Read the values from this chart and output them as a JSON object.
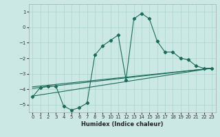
{
  "xlabel": "Humidex (Indice chaleur)",
  "ylabel": "",
  "xlim": [
    -0.5,
    23.5
  ],
  "ylim": [
    -5.5,
    1.5
  ],
  "yticks": [
    1,
    0,
    -1,
    -2,
    -3,
    -4,
    -5
  ],
  "xticks": [
    0,
    1,
    2,
    3,
    4,
    5,
    6,
    7,
    8,
    9,
    10,
    11,
    12,
    13,
    14,
    15,
    16,
    17,
    18,
    19,
    20,
    21,
    22,
    23
  ],
  "bg_color": "#cce8e4",
  "line_color": "#1a6b5a",
  "grid_color": "#b0d8d2",
  "main_series": {
    "x": [
      0,
      1,
      2,
      3,
      4,
      5,
      6,
      7,
      8,
      9,
      10,
      11,
      12,
      13,
      14,
      15,
      16,
      17,
      18,
      19,
      20,
      21,
      22,
      23
    ],
    "y": [
      -4.5,
      -3.9,
      -3.8,
      -3.8,
      -5.1,
      -5.35,
      -5.2,
      -4.9,
      -1.8,
      -1.2,
      -0.85,
      -0.5,
      -3.4,
      0.55,
      0.9,
      0.55,
      -0.9,
      -1.6,
      -1.6,
      -2.0,
      -2.1,
      -2.5,
      -2.65,
      -2.65
    ]
  },
  "trend_lines": [
    {
      "x": [
        0,
        23
      ],
      "y": [
        -3.85,
        -2.65
      ]
    },
    {
      "x": [
        0,
        23
      ],
      "y": [
        -3.95,
        -2.65
      ]
    },
    {
      "x": [
        0,
        23
      ],
      "y": [
        -4.45,
        -2.65
      ]
    }
  ]
}
